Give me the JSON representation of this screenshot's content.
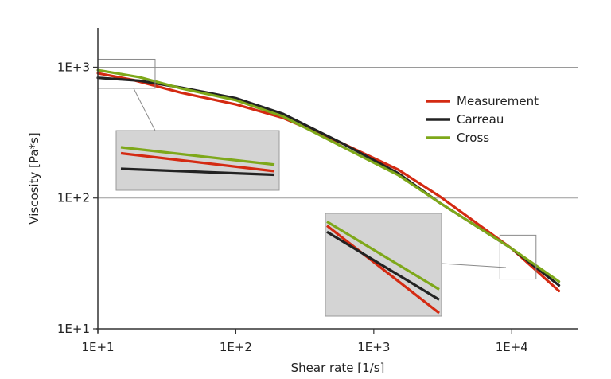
{
  "chart_data": {
    "type": "line",
    "title": "",
    "xlabel": "Shear rate [1/s]",
    "ylabel": "Viscosity [Pa*s]",
    "x_scale": "log",
    "y_scale": "log",
    "xlim": [
      10,
      30000
    ],
    "ylim": [
      10,
      2000
    ],
    "x_ticks": [
      {
        "value": 10,
        "label": "1E+1"
      },
      {
        "value": 100,
        "label": "1E+2"
      },
      {
        "value": 1000,
        "label": "1E+3"
      },
      {
        "value": 10000,
        "label": "1E+4"
      }
    ],
    "y_ticks": [
      {
        "value": 10,
        "label": "1E+1"
      },
      {
        "value": 100,
        "label": "1E+2"
      },
      {
        "value": 1000,
        "label": "1E+3"
      }
    ],
    "grid": "horizontal",
    "legend_position": "top-right",
    "series": [
      {
        "name": "Measurement",
        "color": "#d42a12",
        "x": [
          10,
          18,
          40,
          100,
          220,
          600,
          1500,
          3000,
          10000,
          22000
        ],
        "y": [
          900,
          800,
          640,
          520,
          410,
          260,
          165,
          103,
          41,
          19.5
        ]
      },
      {
        "name": "Carreau",
        "color": "#222222",
        "x": [
          10,
          20,
          40,
          100,
          220,
          600,
          1500,
          3000,
          10000,
          22000
        ],
        "y": [
          830,
          790,
          700,
          580,
          440,
          260,
          155,
          92,
          41,
          21.5
        ]
      },
      {
        "name": "Cross",
        "color": "#7ea81a",
        "x": [
          10,
          20,
          40,
          100,
          220,
          600,
          1500,
          3000,
          10000,
          22000
        ],
        "y": [
          950,
          840,
          690,
          560,
          420,
          245,
          150,
          92,
          41,
          23
        ]
      }
    ],
    "zoom_insets": [
      {
        "source_x": [
          10,
          26
        ],
        "source_y": [
          690,
          1150
        ],
        "series": [
          {
            "color": "#d42a12",
            "start": 0.62,
            "end": 0.32
          },
          {
            "color": "#222222",
            "start": 0.36,
            "end": 0.26
          },
          {
            "color": "#7ea81a",
            "start": 0.72,
            "end": 0.43
          }
        ]
      },
      {
        "source_x": [
          8200,
          15000
        ],
        "source_y": [
          24,
          52
        ],
        "series": [
          {
            "color": "#d42a12",
            "start": 0.88,
            "end": 0.03
          },
          {
            "color": "#222222",
            "start": 0.82,
            "end": 0.16
          },
          {
            "color": "#7ea81a",
            "start": 0.92,
            "end": 0.26
          }
        ]
      }
    ]
  }
}
